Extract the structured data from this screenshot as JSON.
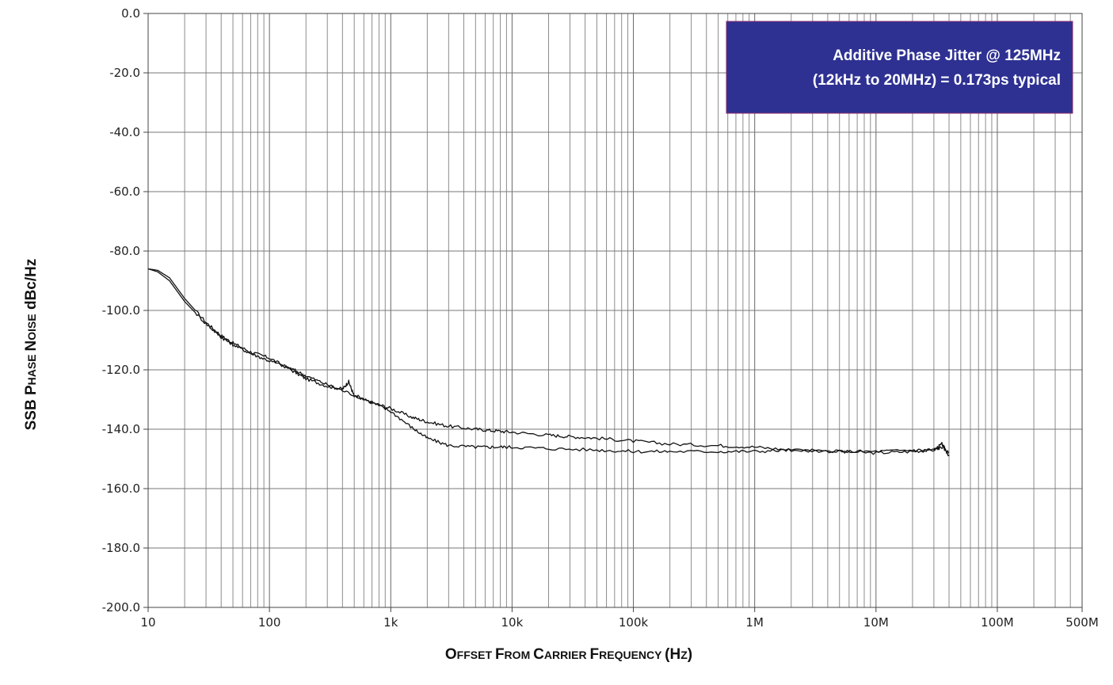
{
  "chart_data": {
    "type": "line",
    "title": "",
    "xlabel": "Offset From Carrier Frequency (Hz)",
    "ylabel": "SSB Phase Noise dBc/Hz",
    "x_scale": "log",
    "xlim": [
      10,
      500000000
    ],
    "ylim": [
      -200,
      0
    ],
    "grid": true,
    "x_tick_labels": [
      {
        "value": 10,
        "label": "10"
      },
      {
        "value": 100,
        "label": "100"
      },
      {
        "value": 1000,
        "label": "1k"
      },
      {
        "value": 10000,
        "label": "10k"
      },
      {
        "value": 100000,
        "label": "100k"
      },
      {
        "value": 1000000,
        "label": "1M"
      },
      {
        "value": 10000000,
        "label": "10M"
      },
      {
        "value": 100000000,
        "label": "100M"
      },
      {
        "value": 500000000,
        "label": "500M"
      }
    ],
    "y_ticks": [
      0,
      -20,
      -40,
      -60,
      -80,
      -100,
      -120,
      -140,
      -160,
      -180,
      -200
    ],
    "y_tick_labels": [
      "0.0",
      "-20.0",
      "-40.0",
      "-60.0",
      "-80.0",
      "-100.0",
      "-120.0",
      "-140.0",
      "-160.0",
      "-180.0",
      "-200.0"
    ],
    "annotation": {
      "line1": "Additive Phase Jitter @ 125MHz",
      "line2": "(12kHz to 20MHz) = 0.173ps typical",
      "bg_color": "#2e3192"
    },
    "series": [
      {
        "x": [
          10,
          12,
          15,
          20,
          30,
          40,
          50,
          70,
          100,
          150,
          200,
          300,
          400,
          450,
          500,
          700,
          1000,
          1500,
          2000,
          3000,
          5000,
          7000,
          10000,
          20000,
          30000,
          50000,
          100000,
          200000,
          500000,
          1000000,
          2000000,
          5000000,
          10000000,
          20000000,
          30000000,
          35000000,
          40000000
        ],
        "y": [
          -86,
          -86.5,
          -89,
          -96,
          -104,
          -108.5,
          -111,
          -114,
          -116,
          -120,
          -123,
          -125.5,
          -126.5,
          -124,
          -129,
          -131,
          -133,
          -136,
          -137.5,
          -139,
          -140,
          -140.5,
          -141,
          -142,
          -142.5,
          -143,
          -144,
          -145,
          -145.5,
          -146,
          -147,
          -147.5,
          -148,
          -147.5,
          -147,
          -145,
          -149
        ]
      },
      {
        "x": [
          10,
          12,
          15,
          20,
          30,
          40,
          50,
          70,
          100,
          150,
          200,
          300,
          500,
          700,
          1000,
          1500,
          2000,
          3000,
          5000,
          7000,
          10000,
          20000,
          50000,
          100000,
          200000,
          500000,
          1000000,
          2000000,
          5000000,
          10000000,
          20000000,
          30000000,
          35000000,
          40000000
        ],
        "y": [
          -86,
          -87,
          -90,
          -97,
          -104.5,
          -109,
          -111.5,
          -114.5,
          -117,
          -119.5,
          -122,
          -125,
          -128.5,
          -131,
          -134,
          -139.5,
          -143,
          -145.5,
          -146,
          -146,
          -146,
          -146.5,
          -147,
          -147.5,
          -147.5,
          -147.5,
          -147.5,
          -147,
          -147.5,
          -147.5,
          -147,
          -147,
          -146,
          -148
        ]
      }
    ]
  }
}
